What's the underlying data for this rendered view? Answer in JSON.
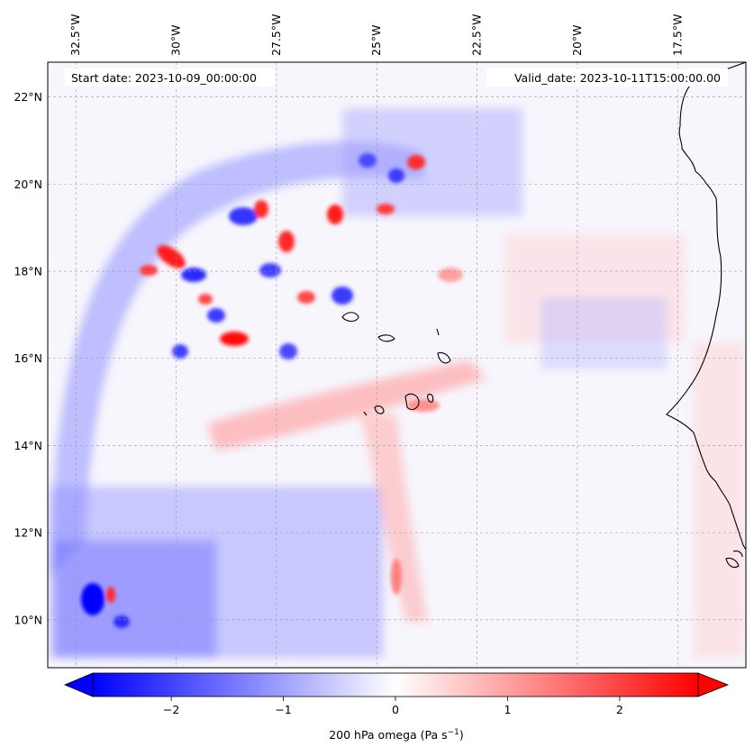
{
  "map": {
    "annotations": {
      "start_label": "Start date: 2023-10-09_00:00:00",
      "valid_label": "Valid_date: 2023-10-11T15:00:00.00"
    },
    "extent": {
      "lon_min": -33.2,
      "lon_max": -15.8,
      "lat_min": 8.9,
      "lat_max": 22.8
    },
    "lon_ticks": [
      {
        "value": -32.5,
        "label": "32.5°W"
      },
      {
        "value": -30.0,
        "label": "30°W"
      },
      {
        "value": -27.5,
        "label": "27.5°W"
      },
      {
        "value": -25.0,
        "label": "25°W"
      },
      {
        "value": -22.5,
        "label": "22.5°W"
      },
      {
        "value": -20.0,
        "label": "20°W"
      },
      {
        "value": -17.5,
        "label": "17.5°W"
      }
    ],
    "lat_ticks": [
      {
        "value": 22,
        "label": "22°N"
      },
      {
        "value": 20,
        "label": "20°N"
      },
      {
        "value": 18,
        "label": "18°N"
      },
      {
        "value": 16,
        "label": "16°N"
      },
      {
        "value": 14,
        "label": "14°N"
      },
      {
        "value": 12,
        "label": "12°N"
      },
      {
        "value": 10,
        "label": "10°N"
      }
    ],
    "gridlines": true,
    "coastline_color": "#000000"
  },
  "colorbar": {
    "label_main": "200 hPa omega (Pa s",
    "label_exp": "−1",
    "label_close": ")",
    "vmin": -2.7,
    "vmax": 2.7,
    "ticks": [
      {
        "value": -2,
        "label": "−2"
      },
      {
        "value": -1,
        "label": "−1"
      },
      {
        "value": 0,
        "label": "0"
      },
      {
        "value": 1,
        "label": "1"
      },
      {
        "value": 2,
        "label": "2"
      }
    ],
    "colors": {
      "low": "#0000ff",
      "mid": "#ffffff",
      "high": "#ff0000"
    },
    "extend": "both"
  }
}
